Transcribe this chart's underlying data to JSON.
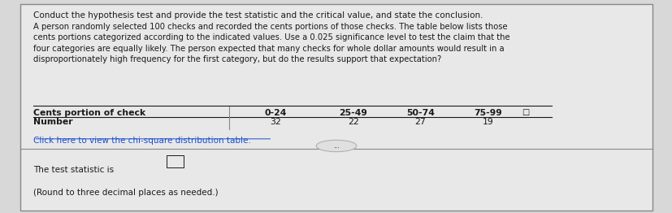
{
  "bg_color": "#d8d8d8",
  "panel_color": "#e8e8e8",
  "border_color": "#888888",
  "title_line": "Conduct the hypothesis test and provide the test statistic and the critical value, and state the conclusion.",
  "body_text": "A person randomly selected 100 checks and recorded the cents portions of those checks. The table below lists those\ncents portions categorized according to the indicated values. Use a 0.025 significance level to test the claim that the\nfour categories are equally likely. The person expected that many checks for whole dollar amounts would result in a\ndisproportionately high frequency for the first category, but do the results support that expectation?",
  "table_header_left": "Cents portion of check",
  "table_header_cols": [
    "0-24",
    "25-49",
    "50-74",
    "75-99"
  ],
  "table_row_label": "Number",
  "table_row_vals": [
    "32",
    "22",
    "27",
    "19"
  ],
  "link_text": "Click here to view the chi-square distribution table.",
  "ellipsis": "...",
  "bottom_line1": "The test statistic is",
  "bottom_line2": "(Round to three decimal places as needed.)",
  "text_color": "#1a1a1a",
  "link_color": "#1a4fcc",
  "font_size_title": 7.5,
  "font_size_body": 7.2,
  "font_size_table": 7.8,
  "font_size_link": 7.5,
  "font_size_bottom": 7.5
}
